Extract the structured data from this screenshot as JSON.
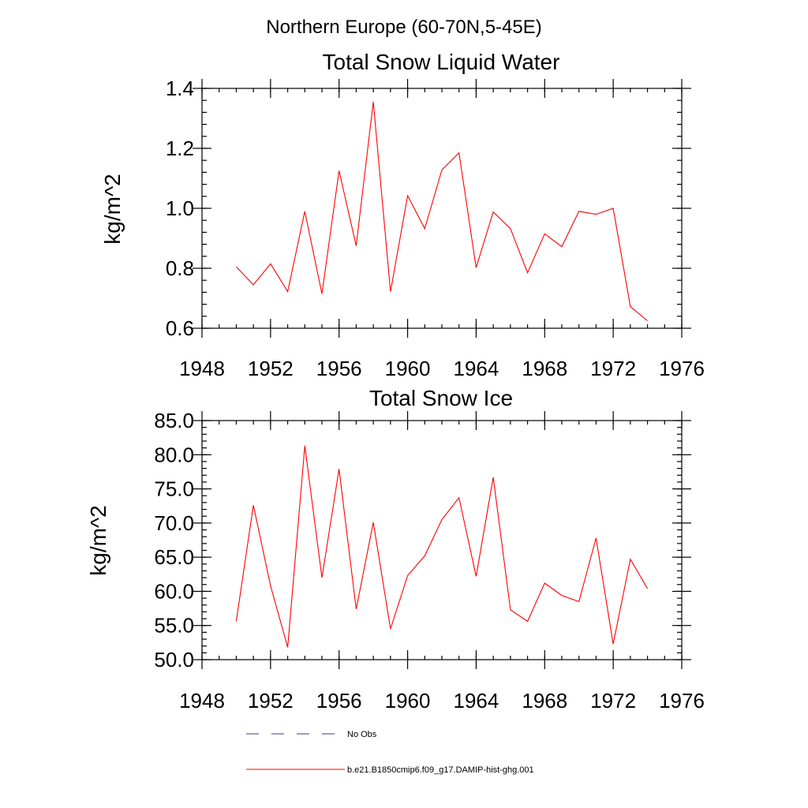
{
  "figure": {
    "suptitle": "Northern Europe (60-70N,5-45E)"
  },
  "chart_data": [
    {
      "type": "line",
      "title": "Total Snow Liquid Water",
      "xlabel": "",
      "ylabel": "kg/m^2",
      "xlim": [
        1948,
        1976
      ],
      "ylim": [
        0.6,
        1.4
      ],
      "xticks": [
        1948,
        1952,
        1956,
        1960,
        1964,
        1968,
        1972,
        1976
      ],
      "xtick_labels": [
        "1948",
        "1952",
        "1956",
        "1960",
        "1964",
        "1968",
        "1972",
        "1976"
      ],
      "yticks": [
        0.6,
        0.8,
        1.0,
        1.2,
        1.4
      ],
      "ytick_labels": [
        "0.6",
        "0.8",
        "1.0",
        "1.2",
        "1.4"
      ],
      "grid": false,
      "series": [
        {
          "name": "b.e21.B1850cmip6.f09_g17.DAMIP-hist-ghg.001",
          "color": "#ff0000",
          "x": [
            1950,
            1951,
            1952,
            1953,
            1954,
            1955,
            1956,
            1957,
            1958,
            1959,
            1960,
            1961,
            1962,
            1963,
            1964,
            1965,
            1966,
            1967,
            1968,
            1969,
            1970,
            1971,
            1972,
            1973,
            1974
          ],
          "y": [
            0.805,
            0.745,
            0.815,
            0.722,
            0.99,
            0.715,
            1.125,
            0.875,
            1.355,
            0.722,
            1.042,
            0.932,
            1.128,
            1.185,
            0.802,
            0.988,
            0.932,
            0.785,
            0.915,
            0.872,
            0.99,
            0.98,
            1.0,
            0.672,
            0.625
          ]
        }
      ]
    },
    {
      "type": "line",
      "title": "Total Snow Ice",
      "xlabel": "",
      "ylabel": "kg/m^2",
      "xlim": [
        1948,
        1976
      ],
      "ylim": [
        50,
        85
      ],
      "xticks": [
        1948,
        1952,
        1956,
        1960,
        1964,
        1968,
        1972,
        1976
      ],
      "xtick_labels": [
        "1948",
        "1952",
        "1956",
        "1960",
        "1964",
        "1968",
        "1972",
        "1976"
      ],
      "yticks": [
        50,
        55,
        60,
        65,
        70,
        75,
        80,
        85
      ],
      "ytick_labels": [
        "50.0",
        "55.0",
        "60.0",
        "65.0",
        "70.0",
        "75.0",
        "80.0",
        "85.0"
      ],
      "grid": false,
      "series": [
        {
          "name": "b.e21.B1850cmip6.f09_g17.DAMIP-hist-ghg.001",
          "color": "#ff0000",
          "x": [
            1950,
            1951,
            1952,
            1953,
            1954,
            1955,
            1956,
            1957,
            1958,
            1959,
            1960,
            1961,
            1962,
            1963,
            1964,
            1965,
            1966,
            1967,
            1968,
            1969,
            1970,
            1971,
            1972,
            1973,
            1974
          ],
          "y": [
            55.6,
            72.6,
            60.8,
            51.8,
            81.3,
            62.0,
            77.9,
            57.4,
            70.1,
            54.5,
            62.3,
            65.2,
            70.5,
            73.7,
            62.2,
            76.7,
            57.3,
            55.6,
            61.2,
            59.4,
            58.5,
            67.8,
            52.3,
            64.7,
            60.4
          ]
        }
      ]
    }
  ],
  "legend": {
    "placement": "bottom",
    "items": [
      {
        "label": "No Obs",
        "color": "#3a3a8a",
        "style": "dashed"
      },
      {
        "label": "b.e21.B1850cmip6.f09_g17.DAMIP-hist-ghg.001",
        "color": "#ff0000",
        "style": "solid"
      }
    ]
  }
}
